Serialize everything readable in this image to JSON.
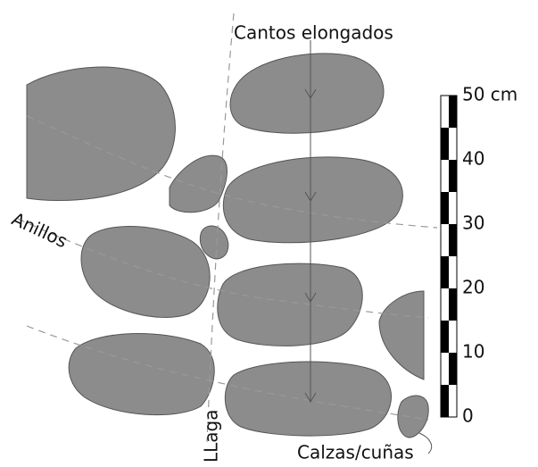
{
  "labels": {
    "top": "Cantos elongados",
    "rings": "Anillos",
    "joint": "LLaga",
    "wedges": "Calzas/cuñas"
  },
  "scale": {
    "labels": [
      "50 cm",
      "40",
      "30",
      "20",
      "10",
      "0"
    ]
  }
}
